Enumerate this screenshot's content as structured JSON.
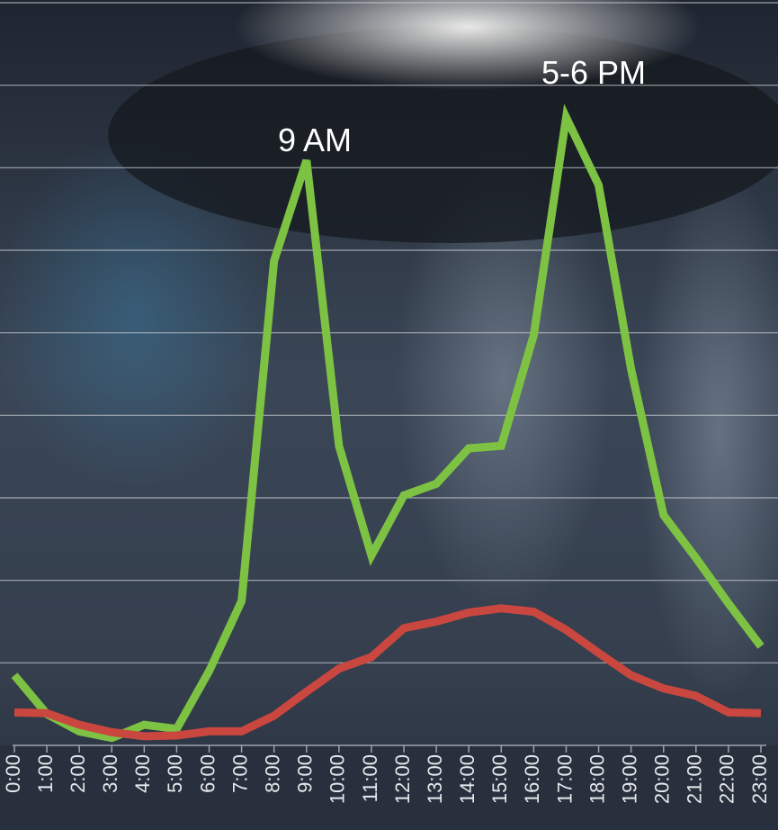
{
  "chart_data": {
    "type": "line",
    "categories": [
      "0:00",
      "1:00",
      "2:00",
      "3:00",
      "4:00",
      "5:00",
      "6:00",
      "7:00",
      "8:00",
      "9:00",
      "10:00",
      "11:00",
      "12:00",
      "13:00",
      "14:00",
      "15:00",
      "16:00",
      "17:00",
      "18:00",
      "19:00",
      "20:00",
      "21:00",
      "22:00",
      "23:00"
    ],
    "series": [
      {
        "color": "#7dc242",
        "values": [
          0.85,
          0.38,
          0.17,
          0.09,
          0.25,
          0.2,
          0.9,
          1.75,
          5.87,
          7.09,
          3.63,
          2.3,
          3.03,
          3.17,
          3.6,
          3.63,
          4.97,
          7.61,
          6.79,
          4.56,
          2.79,
          2.27,
          1.72,
          1.2
        ]
      },
      {
        "color": "#c9473f",
        "values": [
          0.4,
          0.39,
          0.25,
          0.16,
          0.11,
          0.12,
          0.17,
          0.17,
          0.36,
          0.65,
          0.93,
          1.07,
          1.42,
          1.5,
          1.61,
          1.66,
          1.62,
          1.4,
          1.12,
          0.85,
          0.69,
          0.6,
          0.4,
          0.39
        ]
      }
    ],
    "annotations": [
      "9 AM",
      "5-6 PM"
    ],
    "ylim": [
      0,
      9
    ],
    "yticks": [
      1,
      2,
      3,
      4,
      5,
      6,
      7,
      8,
      9
    ],
    "grid": true
  }
}
